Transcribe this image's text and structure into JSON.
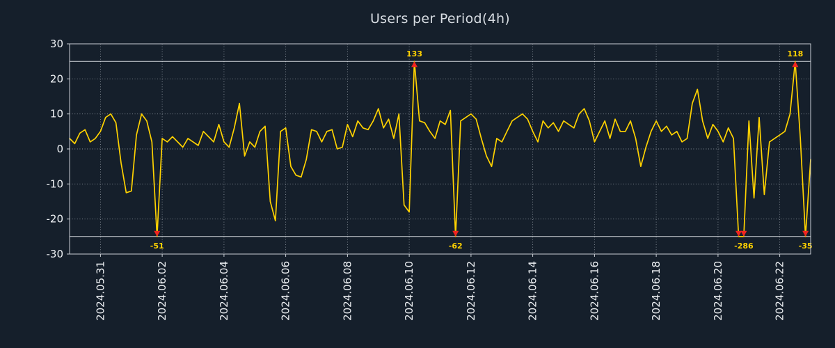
{
  "colors": {
    "background": "#151f2b",
    "series": "#ffd200",
    "marker": "#f02520",
    "grid": "#aeb6bf",
    "frame": "#c9ced4",
    "clip_line": "#e9edf2",
    "text": "#eef1f4",
    "annotation": "#ffd200",
    "title": "#d7dce2"
  },
  "chart_data": {
    "type": "line",
    "title": "Users per Period(4h)",
    "xlabel": "",
    "ylabel": "",
    "ylim": [
      -30,
      30
    ],
    "y_ticks": [
      -30,
      -20,
      -10,
      0,
      10,
      20,
      30
    ],
    "x_domain_days": [
      0,
      24
    ],
    "points_per_day": 6,
    "interval_hours": 4,
    "clip_value": 25,
    "grid": "dotted",
    "legend": "none",
    "x_tick_days": [
      1,
      3,
      5,
      7,
      9,
      11,
      13,
      15,
      17,
      19,
      21,
      23
    ],
    "x_tick_labels": [
      "2024.05.31",
      "2024.06.02",
      "2024.06.04",
      "2024.06.06",
      "2024.06.08",
      "2024.06.10",
      "2024.06.12",
      "2024.06.14",
      "2024.06.16",
      "2024.06.18",
      "2024.06.20",
      "2024.06.22"
    ],
    "values": [
      3,
      1.5,
      4.5,
      5.5,
      2,
      3,
      5,
      9,
      10,
      7.5,
      -4,
      -12.5,
      -12,
      4,
      10,
      8,
      2,
      -51,
      3,
      2,
      3.5,
      2,
      0.5,
      3,
      2,
      1,
      5,
      3.5,
      2,
      7,
      2,
      0.5,
      6,
      13,
      -2,
      2,
      0.5,
      5,
      6.5,
      -15,
      -20.5,
      5,
      6,
      -5,
      -7.5,
      -8,
      -3,
      5.5,
      5,
      2,
      5,
      5.5,
      0,
      0.5,
      7,
      3.5,
      8,
      6,
      5.5,
      8,
      11.5,
      6,
      8.5,
      3,
      10,
      -16,
      -18,
      133,
      8,
      7.5,
      5,
      3,
      8,
      7,
      11,
      -62,
      8,
      9,
      10,
      8.5,
      3,
      -2,
      -5,
      3,
      2,
      5,
      8,
      9,
      10,
      8.5,
      5,
      2,
      8,
      6,
      7.5,
      5,
      8,
      7,
      6,
      10,
      11.5,
      8,
      2,
      5,
      8,
      3,
      8.5,
      5,
      5,
      8,
      3,
      -5,
      0.5,
      5,
      8,
      5,
      6.5,
      4,
      5,
      2,
      3,
      13,
      17,
      8,
      3,
      7,
      5,
      2,
      6,
      3,
      -26,
      -286,
      8,
      -14,
      9,
      -13,
      2,
      3,
      4,
      5,
      10,
      118,
      3,
      -35,
      -3
    ],
    "annotations": [
      {
        "index": 17,
        "label": "-51",
        "position": "below"
      },
      {
        "index": 67,
        "label": "133",
        "position": "above"
      },
      {
        "index": 75,
        "label": "-62",
        "position": "below"
      },
      {
        "index": 131,
        "label": "-286",
        "position": "below"
      },
      {
        "index": 141,
        "label": "118",
        "position": "above"
      },
      {
        "index": 143,
        "label": "-35",
        "position": "below"
      }
    ]
  }
}
